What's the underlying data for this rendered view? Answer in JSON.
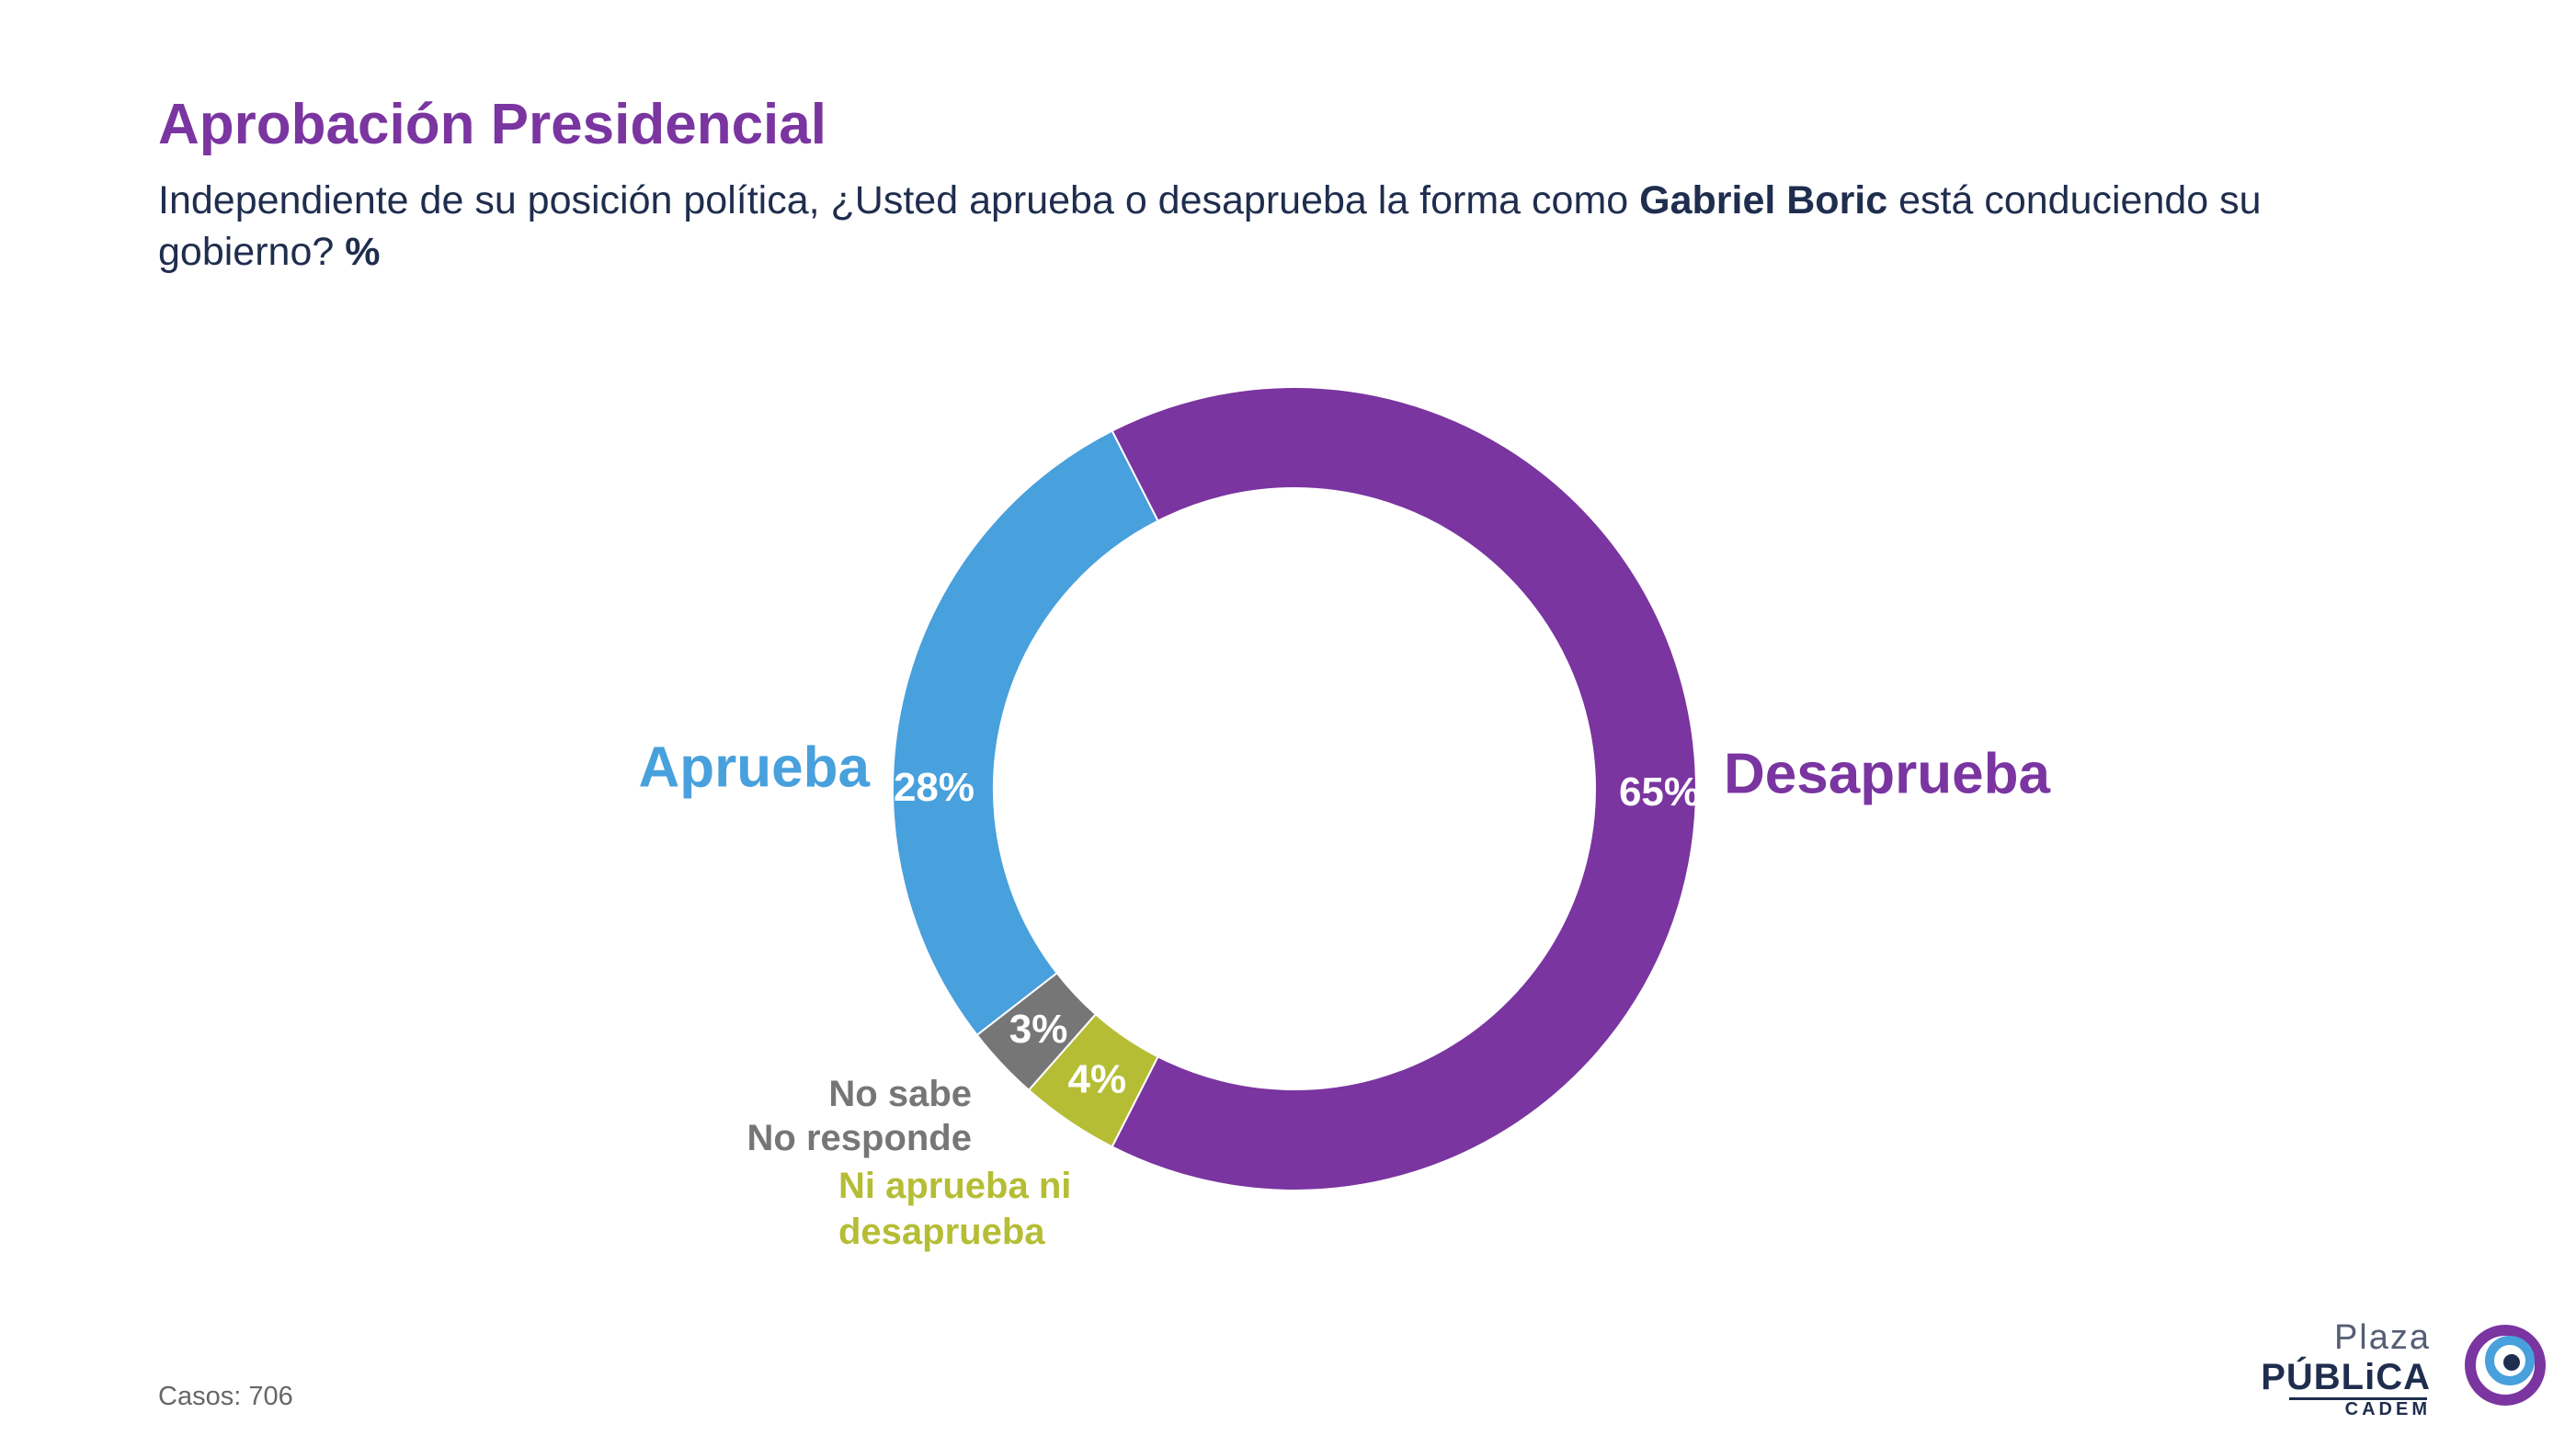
{
  "title": "Aprobación Presidencial",
  "subtitle": {
    "before": "Independiente de su posición política, ¿Usted aprueba o desaprueba la forma como ",
    "bold_name": "Gabriel Boric",
    "after": " está conduciendo su gobierno? ",
    "bold_unit": "%"
  },
  "chart_data": {
    "type": "pie",
    "style": "donut",
    "unit": "%",
    "slices": [
      {
        "name": "Desaprueba",
        "value": 65,
        "label": "65%",
        "color": "#7a35a0",
        "label_color": "#7a35a0"
      },
      {
        "name": "Ni aprueba ni desaprueba",
        "value": 4,
        "label": "4%",
        "color": "#b5bd35",
        "label_color": "#b5bd35"
      },
      {
        "name": "No sabe No responde",
        "value": 3,
        "label": "3%",
        "color": "#767676",
        "label_color": "#767676"
      },
      {
        "name": "Aprueba",
        "value": 28,
        "label": "28%",
        "color": "#48a0dc",
        "label_color": "#48a0dc"
      }
    ]
  },
  "footer": {
    "cases": "Casos: 706"
  },
  "logo": {
    "line1": "Plaza",
    "line2": "PÚBLiCA",
    "line3": "CADEM",
    "colors": [
      "#7a35a0",
      "#48a0dc",
      "#1f2d4e"
    ]
  }
}
